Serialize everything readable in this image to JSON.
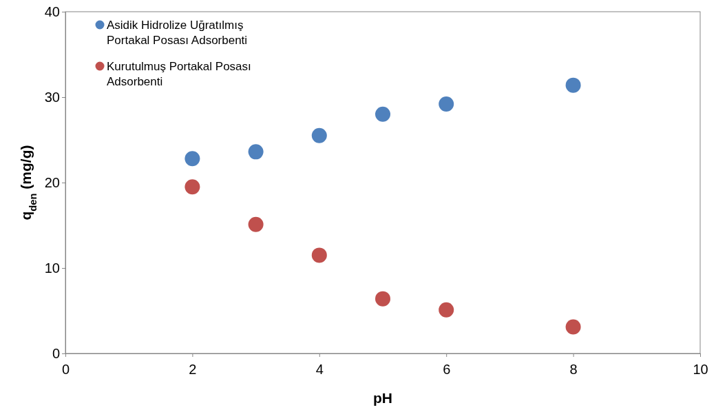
{
  "chart_data": {
    "type": "scatter",
    "xlabel": "pH",
    "ylabel": "q$_{den}$ (mg/g)",
    "xlim": [
      0,
      10
    ],
    "xticks": [
      0,
      2,
      4,
      6,
      8,
      10
    ],
    "ylim": [
      0,
      40
    ],
    "yticks": [
      0,
      10,
      20,
      30,
      40
    ],
    "grid": false,
    "legend": "top left",
    "marker": "circle",
    "series": [
      {
        "name": "Asidik Hidrolize Uğratılmış Portakal Posası Adsorbenti",
        "color": "#4f81bd",
        "x": [
          2,
          3,
          4,
          5,
          6,
          8
        ],
        "values": [
          22.8,
          23.6,
          25.5,
          28.0,
          29.2,
          31.4
        ]
      },
      {
        "name": "Kurutulmuş Portakal Posası Adsorbenti",
        "color": "#c0504d",
        "x": [
          2,
          3,
          4,
          5,
          6,
          8
        ],
        "values": [
          19.5,
          15.1,
          11.5,
          6.4,
          5.1,
          3.1
        ]
      }
    ]
  }
}
